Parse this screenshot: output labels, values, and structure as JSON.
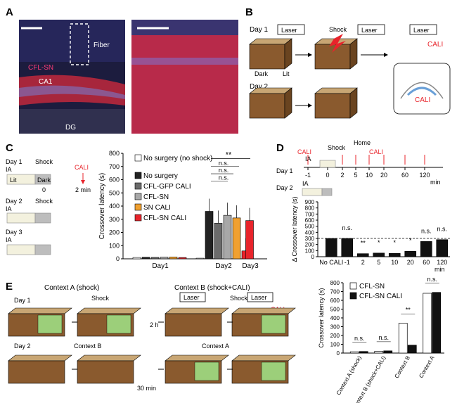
{
  "panels": {
    "A": {
      "letter": "A",
      "labels": [
        "Fiber",
        "CFL-SN",
        "CA1",
        "DG"
      ]
    },
    "B": {
      "letter": "B",
      "day1": "Day 1",
      "day2": "Day 2",
      "laser": "Laser",
      "shock": "Shock",
      "dark": "Dark",
      "lit": "Lit",
      "cali": "CALI"
    },
    "C": {
      "letter": "C",
      "protocol": {
        "day1": "Day 1",
        "day2": "Day 2",
        "day3": "Day 3",
        "ia": "IA",
        "shock": "Shock",
        "cali": "CALI",
        "lit": "Lit",
        "dark": "Dark",
        "t0": "0",
        "t2": "2 min"
      }
    },
    "D": {
      "letter": "D",
      "timeline": {
        "day1": "Day 1",
        "day2": "Day 2",
        "ia": "IA",
        "shock": "Shock",
        "home": "Home",
        "cali": "CALI",
        "ticks": [
          "-1",
          "0",
          "2",
          "5",
          "10",
          "20",
          "60",
          "120"
        ],
        "unit": "min"
      }
    },
    "E": {
      "letter": "E",
      "day1": "Day 1",
      "day2": "Day 2",
      "context_a_shock": "Context A (shock)",
      "context_b_shock_cali": "Context B (shock+CALI)",
      "context_b": "Context B",
      "context_a": "Context A",
      "shock": "Shock",
      "laser": "Laser",
      "cali": "CALI",
      "delay1": "2 h",
      "delay2": "30 min"
    }
  },
  "chart_data": [
    {
      "id": "C",
      "type": "bar",
      "ylabel": "Crossover latency (s)",
      "ylim": [
        0,
        800
      ],
      "yticks": [
        0,
        100,
        200,
        300,
        400,
        500,
        600,
        700,
        800
      ],
      "groups": [
        "Day1",
        "Day2",
        "Day3"
      ],
      "legend": [
        "No surgery (no shock)",
        "No surgery",
        "CFL-GFP CALI",
        "CFL-SN",
        "SN CALI",
        "CFL-SN CALI"
      ],
      "colors": [
        "#ffffff",
        "#222222",
        "#6b6b6b",
        "#a8a8a8",
        "#f0a030",
        "#e8242b"
      ],
      "series": [
        {
          "name": "No surgery (no shock)",
          "values": [
            10,
            5,
            null
          ]
        },
        {
          "name": "No surgery",
          "values": [
            12,
            360,
            null
          ]
        },
        {
          "name": "CFL-GFP CALI",
          "values": [
            11,
            270,
            null
          ]
        },
        {
          "name": "CFL-SN",
          "values": [
            13,
            330,
            null
          ]
        },
        {
          "name": "SN CALI",
          "values": [
            14,
            310,
            null
          ]
        },
        {
          "name": "CFL-SN CALI",
          "values": [
            10,
            60,
            290
          ]
        }
      ],
      "annotations": [
        "**",
        "n.s.",
        "n.s.",
        "n.s."
      ]
    },
    {
      "id": "D",
      "type": "bar",
      "ylabel": "Δ Crossover latency (s)",
      "ylim": [
        0,
        900
      ],
      "yticks": [
        0,
        100,
        200,
        300,
        400,
        500,
        600,
        700,
        800,
        900
      ],
      "categories": [
        "No CALI",
        "-1",
        "2",
        "5",
        "10",
        "20",
        "60",
        "120"
      ],
      "xunit": "min",
      "values": [
        300,
        300,
        50,
        60,
        55,
        90,
        250,
        280
      ],
      "significance": [
        "",
        "n.s.",
        "**",
        "*",
        "*",
        "*",
        "n.s.",
        "n.s."
      ],
      "reference": 300
    },
    {
      "id": "E",
      "type": "bar",
      "ylabel": "Crossover latency (s)",
      "ylim": [
        0,
        800
      ],
      "yticks": [
        0,
        100,
        200,
        300,
        400,
        500,
        600,
        700,
        800
      ],
      "categories": [
        "Context A (shock)",
        "Context B (shock+CALI)",
        "Context B",
        "Context A"
      ],
      "series": [
        {
          "name": "CFL-SN",
          "values": [
            15,
            20,
            340,
            680
          ]
        },
        {
          "name": "CFL-SN CALI",
          "values": [
            18,
            25,
            90,
            690
          ]
        }
      ],
      "significance": [
        "n.s.",
        "n.s.",
        "**",
        "n.s."
      ]
    }
  ]
}
